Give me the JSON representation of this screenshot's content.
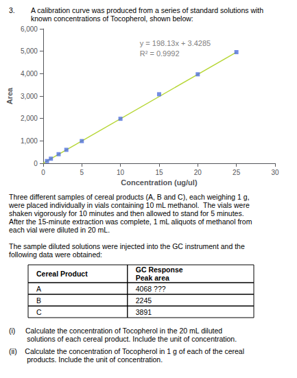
{
  "chart_data": {
    "type": "scatter",
    "texts": {
      "question_number": "3.",
      "question_lines": [
        "A calibration curve was produced from a series of standard solutions with",
        "known concentrations of Tocopherol, shown below:"
      ],
      "paragraph1": [
        "Three different samples of cereal products (A, B and C), each weighing 1 g,",
        "were placed individually in vials containing 10 mL methanol.  The vials were",
        "shaken vigorously for 10 minutes and then allowed to stand for 5 minutes.",
        "After the 15-minute extraction was complete, 1 mL aliquots of methanol from",
        "each vial were diluted in 20 mL."
      ],
      "paragraph2": [
        "The sample diluted solutions were injected into the GC instrument and the",
        "following data were obtained:"
      ],
      "table": {
        "header": [
          "Cereal Product",
          "GC Response\nPeak area"
        ],
        "rows": [
          [
            "A",
            "4068 ???"
          ],
          [
            "B",
            "2245"
          ],
          [
            "C",
            "3891"
          ]
        ]
      },
      "question_i": [
        "(i)     Calculate the concentration of Tocopherol in the 20 mL diluted",
        "         solutions of each cereal product. Include the unit of concentration."
      ],
      "question_ii": [
        "(ii)    Calculate the concentration of Tocopherol in 1 g of each of the cereal",
        "         products. Include the unit of concentration."
      ]
    },
    "xlabel": "Concentration (ug/ul)",
    "ylabel": "Area",
    "annotations": [
      "y = 198.13x + 3.4285",
      "R² = 0.9992"
    ],
    "xlim": [
      0,
      30
    ],
    "xticks": [
      0,
      5,
      10,
      15,
      20,
      25,
      30
    ],
    "ylim": [
      0,
      6000
    ],
    "yticks": [
      0,
      1000,
      2000,
      3000,
      4000,
      5000,
      6000
    ],
    "grid": false,
    "series": [
      {
        "type": "scatter",
        "marker": "square",
        "x": [
          0.5,
          1,
          2,
          3,
          5,
          10,
          15,
          20,
          25
        ],
        "values": [
          100,
          205,
          405,
          600,
          990,
          1985,
          3080,
          3970,
          4960
        ]
      },
      {
        "type": "line",
        "line_style": "solid",
        "x": [
          0,
          25
        ],
        "values": [
          3.4285,
          4956.6785
        ]
      }
    ]
  }
}
